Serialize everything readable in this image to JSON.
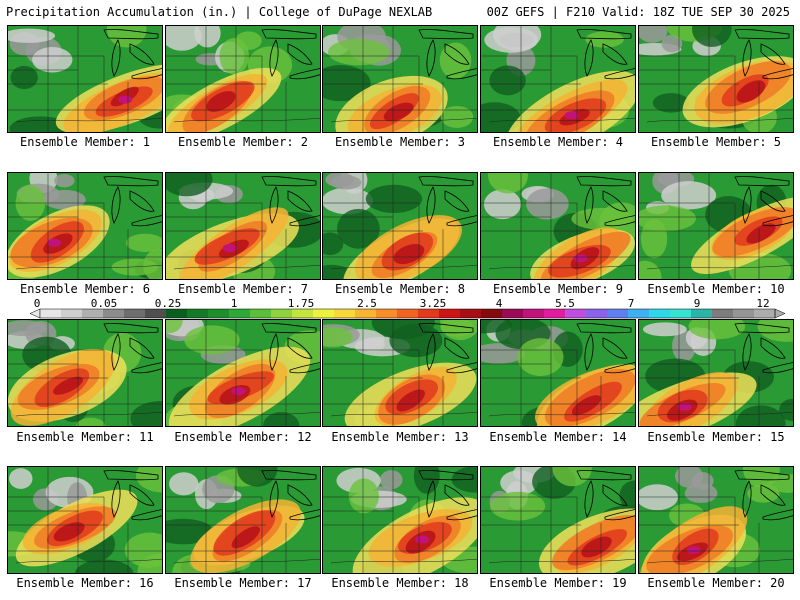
{
  "header": {
    "left_title": "Precipitation Accumulation (in.) | College of DuPage NEXLAB",
    "right_title": "00Z GEFS | F210 Valid: 18Z TUE SEP 30 2025"
  },
  "members": [
    {
      "label": "Ensemble Member: 1"
    },
    {
      "label": "Ensemble Member: 2"
    },
    {
      "label": "Ensemble Member: 3"
    },
    {
      "label": "Ensemble Member: 4"
    },
    {
      "label": "Ensemble Member: 5"
    },
    {
      "label": "Ensemble Member: 6"
    },
    {
      "label": "Ensemble Member: 7"
    },
    {
      "label": "Ensemble Member: 8"
    },
    {
      "label": "Ensemble Member: 9"
    },
    {
      "label": "Ensemble Member: 10"
    },
    {
      "label": "Ensemble Member: 11"
    },
    {
      "label": "Ensemble Member: 12"
    },
    {
      "label": "Ensemble Member: 13"
    },
    {
      "label": "Ensemble Member: 14"
    },
    {
      "label": "Ensemble Member: 15"
    },
    {
      "label": "Ensemble Member: 16"
    },
    {
      "label": "Ensemble Member: 17"
    },
    {
      "label": "Ensemble Member: 18"
    },
    {
      "label": "Ensemble Member: 19"
    },
    {
      "label": "Ensemble Member: 20"
    }
  ],
  "colorbar": {
    "tick_labels": [
      "0",
      "0.05",
      "0.25",
      "1",
      "1.75",
      "2.5",
      "3.25",
      "4",
      "5.5",
      "7",
      "9",
      "12"
    ],
    "colors": [
      "#e6e6e6",
      "#cfcfcf",
      "#b0b0b0",
      "#8c8c8c",
      "#6e6e6e",
      "#4f4f4f",
      "#0b5f1e",
      "#157a27",
      "#1e8f2c",
      "#2ea836",
      "#5cbf3a",
      "#8fd43e",
      "#c3e63f",
      "#ecf23f",
      "#f6d83a",
      "#f8b531",
      "#f78e29",
      "#f06422",
      "#e23a1c",
      "#cc1616",
      "#a80e12",
      "#850a0e",
      "#9b0b55",
      "#c2137a",
      "#e21c9e",
      "#c04ee0",
      "#8a63ea",
      "#5f7ef0",
      "#3fb0f0",
      "#2ed8e8",
      "#36e2d2",
      "#2bb5a8",
      "#7c7c7c",
      "#959595",
      "#adadad"
    ]
  }
}
